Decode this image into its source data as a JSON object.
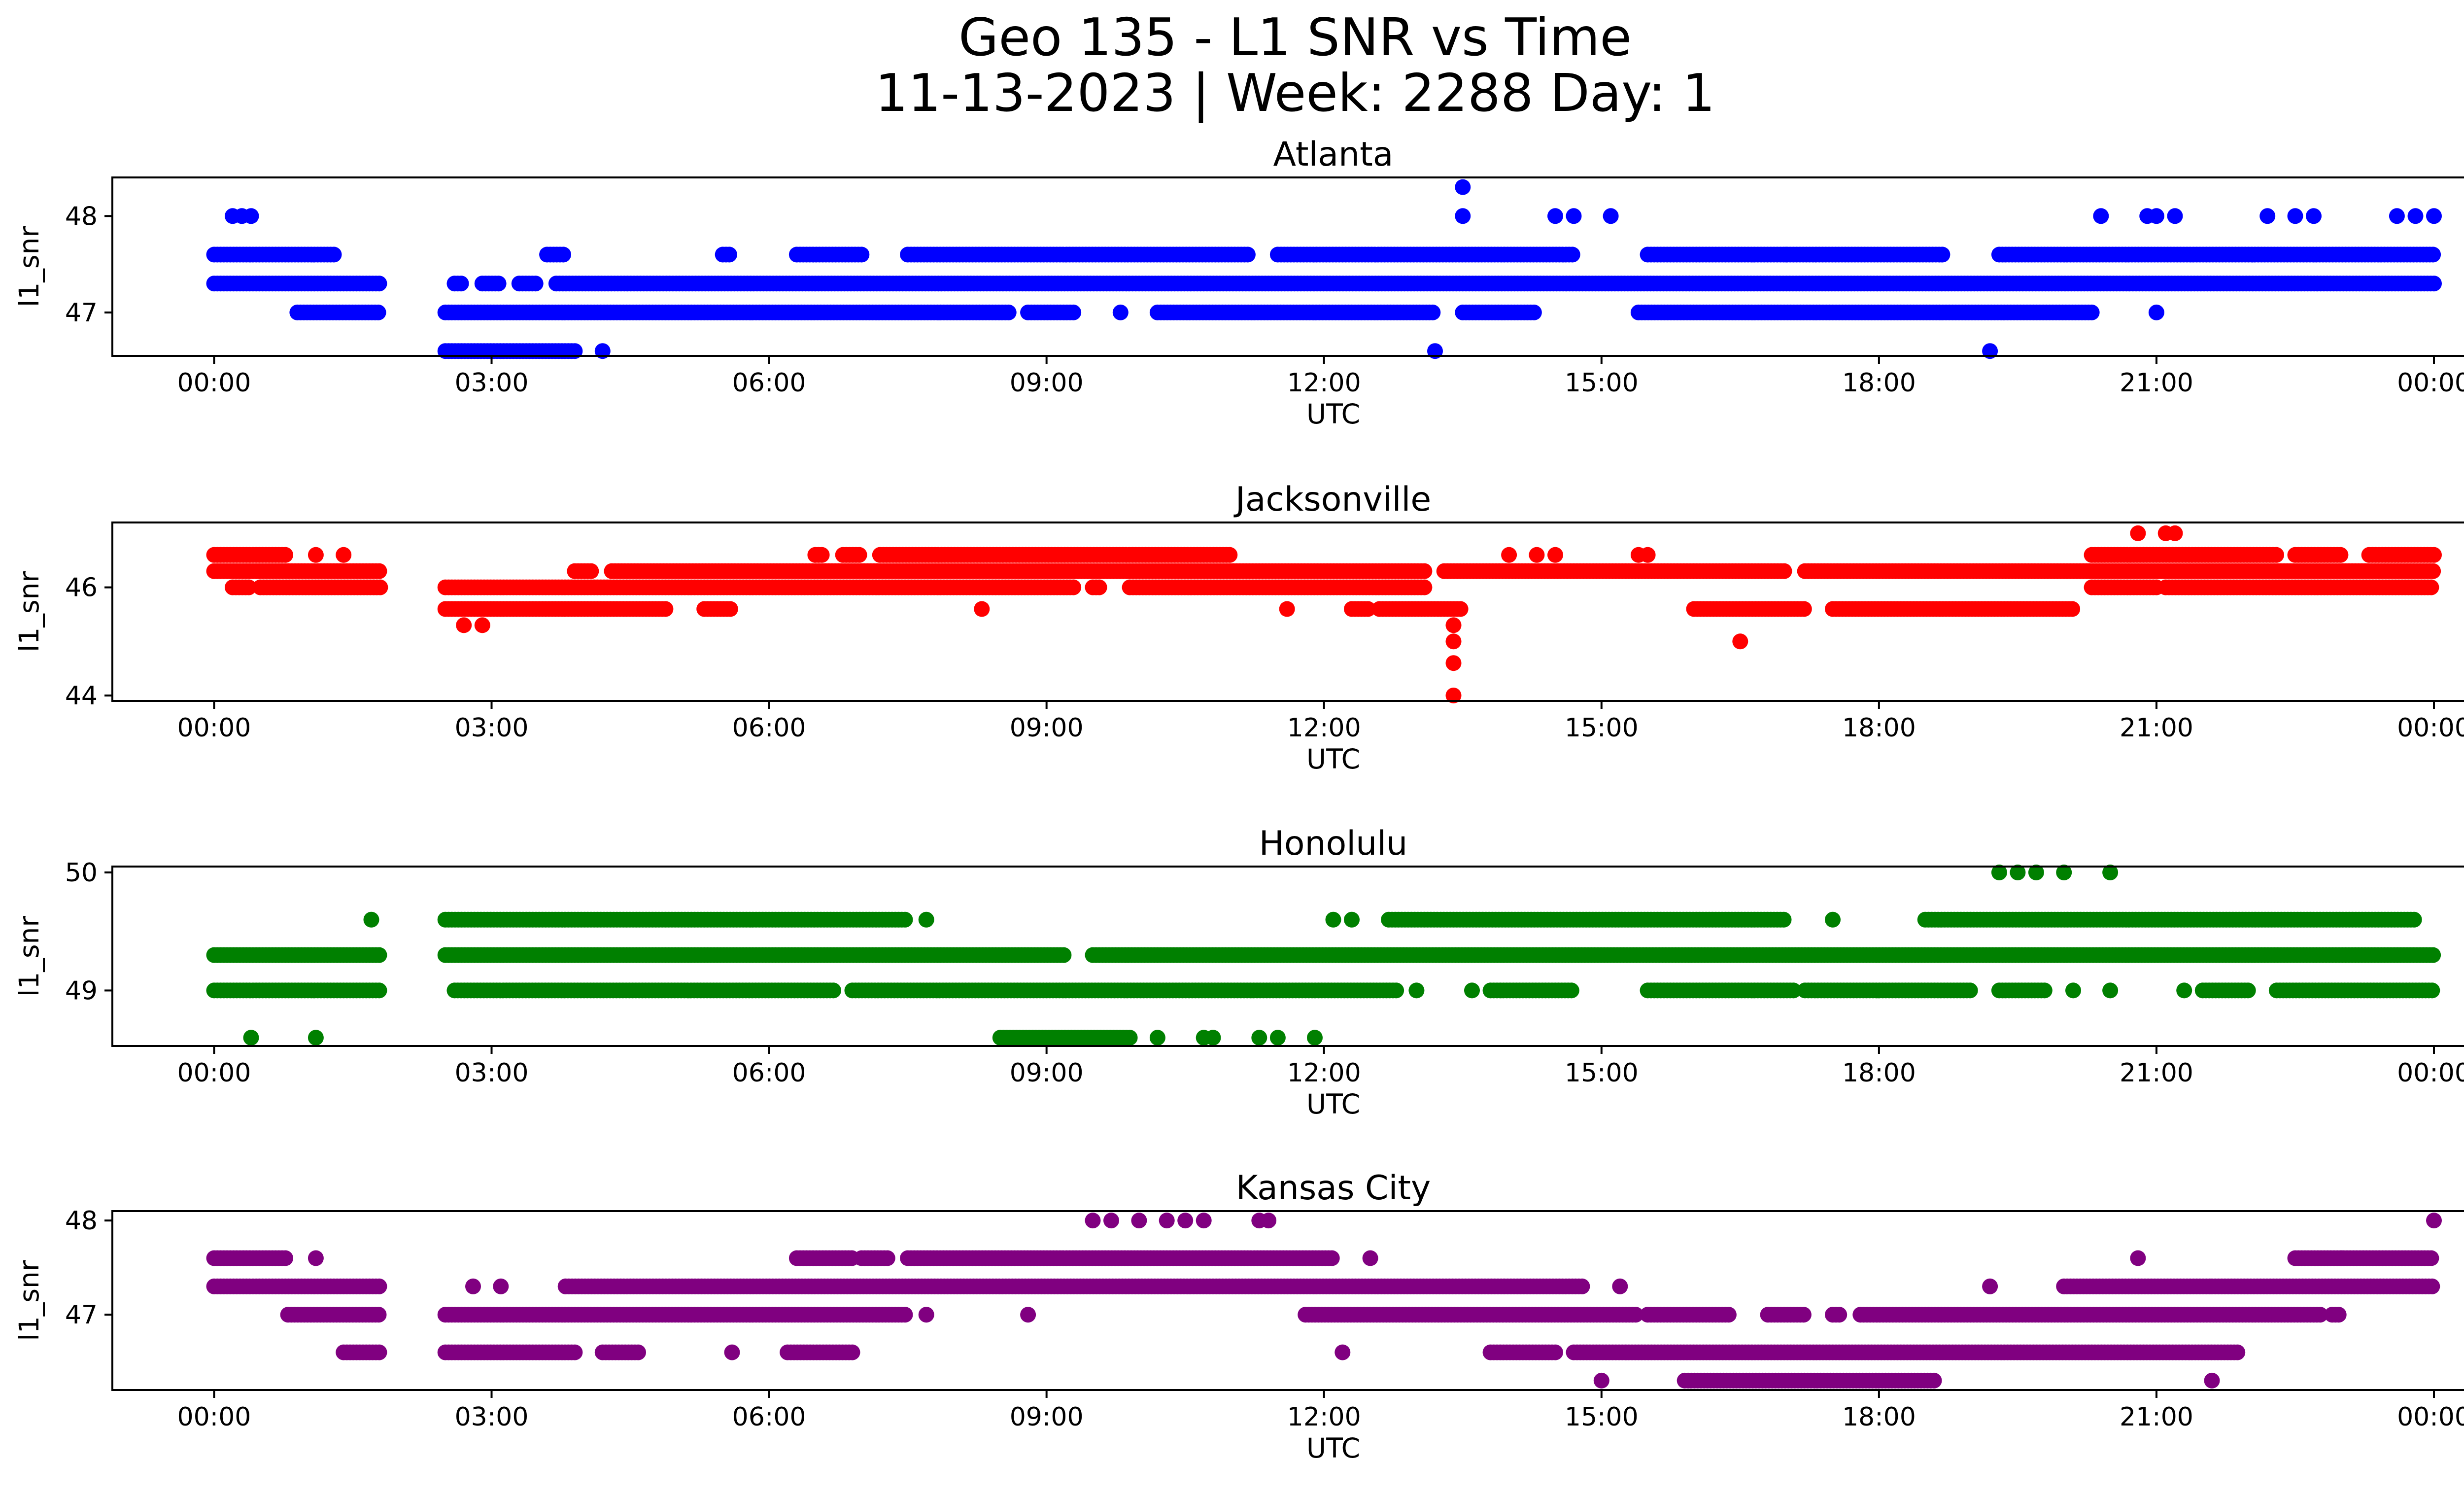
{
  "figure": {
    "title_line1": "Geo 135 - L1 SNR vs Time",
    "title_line2": "11-13-2023 | Week: 2288 Day: 1"
  },
  "chart_data": [
    {
      "type": "scatter",
      "title": "Atlanta",
      "xlabel": "UTC",
      "ylabel": "l1_snr",
      "color": "#0000ff",
      "x_tick_labels": [
        "00:00",
        "03:00",
        "06:00",
        "09:00",
        "12:00",
        "15:00",
        "18:00",
        "21:00",
        "00:00"
      ],
      "x_range_hours": [
        -1.1,
        25.3
      ],
      "ylim": [
        46.55,
        48.4
      ],
      "y_ticks": [
        47,
        48
      ],
      "bands": [
        {
          "y": 47.6,
          "segments": [
            [
              0,
              1.3
            ],
            [
              3.6,
              3.8
            ],
            [
              5.5,
              5.6
            ],
            [
              6.3,
              7.0
            ],
            [
              7.5,
              11.2
            ],
            [
              11.5,
              14.7
            ],
            [
              15.5,
              18.7
            ],
            [
              19.3,
              24.0
            ]
          ]
        },
        {
          "y": 47.3,
          "segments": [
            [
              0,
              1.8
            ],
            [
              2.6,
              2.7
            ],
            [
              2.9,
              3.1
            ],
            [
              3.3,
              3.5
            ],
            [
              3.7,
              24.0
            ]
          ]
        },
        {
          "y": 47.0,
          "segments": [
            [
              0.9,
              1.8
            ],
            [
              2.5,
              8.6
            ],
            [
              8.8,
              9.3
            ],
            [
              10.2,
              13.2
            ],
            [
              13.5,
              14.3
            ],
            [
              15.4,
              20.3
            ]
          ]
        },
        {
          "y": 46.6,
          "segments": [
            [
              2.5,
              3.9
            ]
          ]
        }
      ],
      "points": [
        {
          "x": 0.2,
          "y": 48
        },
        {
          "x": 0.3,
          "y": 48
        },
        {
          "x": 0.4,
          "y": 48
        },
        {
          "x": 4.2,
          "y": 46.6
        },
        {
          "x": 9.8,
          "y": 47
        },
        {
          "x": 13.2,
          "y": 46.6
        },
        {
          "x": 13.5,
          "y": 48.3
        },
        {
          "x": 13.5,
          "y": 48
        },
        {
          "x": 14.5,
          "y": 48
        },
        {
          "x": 14.7,
          "y": 48
        },
        {
          "x": 15.1,
          "y": 48
        },
        {
          "x": 17.0,
          "y": 47.6
        },
        {
          "x": 19.2,
          "y": 46.6
        },
        {
          "x": 20.4,
          "y": 48
        },
        {
          "x": 20.9,
          "y": 48
        },
        {
          "x": 21.0,
          "y": 48
        },
        {
          "x": 21.2,
          "y": 48
        },
        {
          "x": 21.0,
          "y": 47
        },
        {
          "x": 22.2,
          "y": 48
        },
        {
          "x": 22.5,
          "y": 48
        },
        {
          "x": 22.7,
          "y": 48
        },
        {
          "x": 23.6,
          "y": 48
        },
        {
          "x": 23.8,
          "y": 48
        },
        {
          "x": 24.0,
          "y": 48
        }
      ]
    },
    {
      "type": "scatter",
      "title": "Jacksonville",
      "xlabel": "UTC",
      "ylabel": "l1_snr",
      "color": "#ff0000",
      "x_tick_labels": [
        "00:00",
        "03:00",
        "06:00",
        "09:00",
        "12:00",
        "15:00",
        "18:00",
        "21:00",
        "00:00"
      ],
      "x_range_hours": [
        -1.1,
        25.3
      ],
      "ylim": [
        43.9,
        47.2
      ],
      "y_ticks": [
        44,
        46
      ],
      "bands": [
        {
          "y": 46.6,
          "segments": [
            [
              0,
              0.8
            ],
            [
              6.5,
              6.6
            ],
            [
              6.8,
              7.0
            ],
            [
              7.2,
              11.0
            ],
            [
              20.3,
              22.3
            ],
            [
              22.5,
              23.0
            ],
            [
              23.3,
              24.0
            ]
          ]
        },
        {
          "y": 46.3,
          "segments": [
            [
              0,
              1.8
            ],
            [
              3.9,
              4.1
            ],
            [
              4.3,
              13.1
            ],
            [
              13.3,
              17.0
            ],
            [
              17.2,
              24.0
            ]
          ]
        },
        {
          "y": 46.0,
          "segments": [
            [
              0.2,
              0.4
            ],
            [
              0.5,
              1.8
            ],
            [
              2.5,
              9.3
            ],
            [
              9.5,
              9.6
            ],
            [
              9.9,
              13.1
            ],
            [
              20.3,
              21.0
            ],
            [
              21.1,
              24.0
            ]
          ]
        },
        {
          "y": 45.6,
          "segments": [
            [
              2.5,
              4.9
            ],
            [
              5.3,
              5.6
            ],
            [
              12.3,
              12.5
            ],
            [
              12.6,
              13.5
            ],
            [
              16.0,
              17.2
            ],
            [
              17.5,
              20.1
            ]
          ]
        }
      ],
      "points": [
        {
          "x": 1.1,
          "y": 46.6
        },
        {
          "x": 1.4,
          "y": 46.6
        },
        {
          "x": 2.7,
          "y": 45.3
        },
        {
          "x": 2.9,
          "y": 45.3
        },
        {
          "x": 8.3,
          "y": 45.6
        },
        {
          "x": 11.6,
          "y": 45.6
        },
        {
          "x": 13.4,
          "y": 45.3
        },
        {
          "x": 13.4,
          "y": 45.0
        },
        {
          "x": 13.4,
          "y": 44.6
        },
        {
          "x": 13.4,
          "y": 44.0
        },
        {
          "x": 14.0,
          "y": 46.6
        },
        {
          "x": 14.3,
          "y": 46.6
        },
        {
          "x": 14.5,
          "y": 46.6
        },
        {
          "x": 15.4,
          "y": 46.6
        },
        {
          "x": 15.5,
          "y": 46.6
        },
        {
          "x": 16.5,
          "y": 45.0
        },
        {
          "x": 20.8,
          "y": 47
        },
        {
          "x": 21.1,
          "y": 47
        },
        {
          "x": 21.2,
          "y": 47
        }
      ]
    },
    {
      "type": "scatter",
      "title": "Honolulu",
      "xlabel": "UTC",
      "ylabel": "l1_snr",
      "color": "#008000",
      "x_tick_labels": [
        "00:00",
        "03:00",
        "06:00",
        "09:00",
        "12:00",
        "15:00",
        "18:00",
        "21:00",
        "00:00"
      ],
      "x_range_hours": [
        -1.1,
        25.3
      ],
      "ylim": [
        48.53,
        50.05
      ],
      "y_ticks": [
        49,
        50
      ],
      "bands": [
        {
          "y": 49.6,
          "segments": [
            [
              2.5,
              7.5
            ],
            [
              12.7,
              17.0
            ],
            [
              18.5,
              23.8
            ]
          ]
        },
        {
          "y": 49.3,
          "segments": [
            [
              0,
              1.8
            ],
            [
              2.5,
              9.2
            ],
            [
              9.5,
              24.0
            ]
          ]
        },
        {
          "y": 49.0,
          "segments": [
            [
              0,
              1.8
            ],
            [
              2.6,
              6.7
            ],
            [
              6.9,
              12.8
            ],
            [
              13.8,
              14.7
            ],
            [
              15.5,
              17.1
            ],
            [
              17.2,
              19.0
            ],
            [
              19.3,
              19.8
            ],
            [
              21.5,
              22.0
            ],
            [
              22.3,
              24.0
            ]
          ]
        },
        {
          "y": 48.6,
          "segments": [
            [
              8.5,
              9.9
            ]
          ]
        }
      ],
      "points": [
        {
          "x": 0.4,
          "y": 48.6
        },
        {
          "x": 1.1,
          "y": 48.6
        },
        {
          "x": 1.7,
          "y": 49.6
        },
        {
          "x": 7.7,
          "y": 49.6
        },
        {
          "x": 10.2,
          "y": 48.6
        },
        {
          "x": 10.7,
          "y": 48.6
        },
        {
          "x": 10.8,
          "y": 48.6
        },
        {
          "x": 11.3,
          "y": 48.6
        },
        {
          "x": 11.5,
          "y": 48.6
        },
        {
          "x": 11.9,
          "y": 48.6
        },
        {
          "x": 12.1,
          "y": 49.6
        },
        {
          "x": 12.3,
          "y": 49.6
        },
        {
          "x": 13.0,
          "y": 49.0
        },
        {
          "x": 13.6,
          "y": 49.0
        },
        {
          "x": 17.5,
          "y": 49.6
        },
        {
          "x": 19.3,
          "y": 50
        },
        {
          "x": 19.5,
          "y": 50
        },
        {
          "x": 19.7,
          "y": 50
        },
        {
          "x": 20.0,
          "y": 50
        },
        {
          "x": 20.5,
          "y": 50
        },
        {
          "x": 20.1,
          "y": 49.0
        },
        {
          "x": 20.5,
          "y": 49.0
        },
        {
          "x": 21.3,
          "y": 49.0
        }
      ]
    },
    {
      "type": "scatter",
      "title": "Kansas City",
      "xlabel": "UTC",
      "ylabel": "l1_snr",
      "color": "#800080",
      "x_tick_labels": [
        "00:00",
        "03:00",
        "06:00",
        "09:00",
        "12:00",
        "15:00",
        "18:00",
        "21:00",
        "00:00"
      ],
      "x_range_hours": [
        -1.1,
        25.3
      ],
      "ylim": [
        46.2,
        48.1
      ],
      "y_ticks": [
        47,
        48
      ],
      "bands": [
        {
          "y": 47.6,
          "segments": [
            [
              0,
              0.8
            ],
            [
              6.3,
              6.9
            ],
            [
              7.0,
              7.3
            ],
            [
              7.5,
              12.1
            ],
            [
              22.5,
              24.0
            ]
          ]
        },
        {
          "y": 47.3,
          "segments": [
            [
              0,
              1.8
            ],
            [
              3.8,
              14.8
            ],
            [
              20.0,
              21.6
            ],
            [
              21.6,
              24.0
            ]
          ]
        },
        {
          "y": 47.0,
          "segments": [
            [
              0.8,
              1.8
            ],
            [
              2.5,
              7.5
            ],
            [
              11.8,
              15.4
            ],
            [
              15.5,
              16.4
            ],
            [
              16.8,
              17.2
            ],
            [
              17.5,
              17.6
            ],
            [
              17.8,
              22.8
            ],
            [
              22.9,
              23.0
            ]
          ]
        },
        {
          "y": 46.6,
          "segments": [
            [
              1.4,
              1.8
            ],
            [
              2.5,
              3.9
            ],
            [
              4.2,
              4.6
            ],
            [
              6.2,
              6.9
            ],
            [
              13.8,
              14.5
            ],
            [
              14.7,
              21.9
            ]
          ]
        },
        {
          "y": 46.3,
          "segments": [
            [
              15.9,
              18.6
            ]
          ]
        }
      ],
      "points": [
        {
          "x": 1.1,
          "y": 47.6
        },
        {
          "x": 2.8,
          "y": 47.3
        },
        {
          "x": 3.1,
          "y": 47.3
        },
        {
          "x": 5.6,
          "y": 46.6
        },
        {
          "x": 7.7,
          "y": 47.0
        },
        {
          "x": 8.8,
          "y": 47.0
        },
        {
          "x": 9.5,
          "y": 48
        },
        {
          "x": 9.7,
          "y": 48
        },
        {
          "x": 10.0,
          "y": 48
        },
        {
          "x": 10.3,
          "y": 48
        },
        {
          "x": 10.5,
          "y": 48
        },
        {
          "x": 10.7,
          "y": 48
        },
        {
          "x": 11.3,
          "y": 48
        },
        {
          "x": 11.4,
          "y": 48
        },
        {
          "x": 12.2,
          "y": 46.6
        },
        {
          "x": 12.5,
          "y": 47.6
        },
        {
          "x": 15.0,
          "y": 46.3
        },
        {
          "x": 15.2,
          "y": 47.3
        },
        {
          "x": 19.2,
          "y": 47.3
        },
        {
          "x": 20.8,
          "y": 47.6
        },
        {
          "x": 21.6,
          "y": 46.3
        },
        {
          "x": 23.0,
          "y": 47.6
        },
        {
          "x": 24.0,
          "y": 48
        }
      ]
    }
  ]
}
